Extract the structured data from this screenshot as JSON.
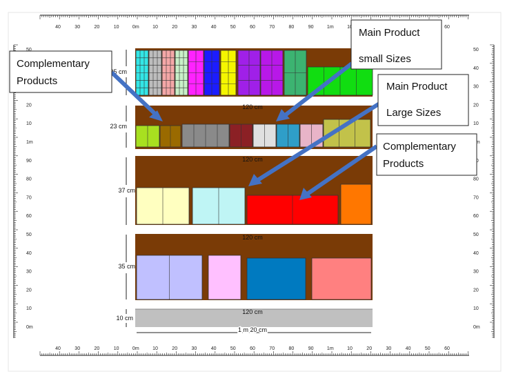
{
  "ruler": {
    "top_labels": [
      "40",
      "30",
      "20",
      "10",
      "0m",
      "10",
      "20",
      "30",
      "40",
      "50",
      "60",
      "70",
      "80",
      "90",
      "1m",
      "10",
      "20",
      "30",
      "40",
      "50",
      "60"
    ],
    "bottom_labels": [
      "40",
      "30",
      "20",
      "10",
      "0m",
      "10",
      "20",
      "30",
      "40",
      "50",
      "60",
      "70",
      "80",
      "90",
      "1m",
      "10",
      "20",
      "30",
      "40",
      "50",
      "60"
    ],
    "side_labels": [
      "50",
      "40",
      "30",
      "20",
      "10",
      "1m",
      "90",
      "80",
      "70",
      "60",
      "50",
      "40",
      "30",
      "20",
      "10",
      "0m"
    ]
  },
  "shelves": [
    {
      "height_label": "25 cm",
      "width_label": ""
    },
    {
      "height_label": "23 cm",
      "width_label": "120 cm"
    },
    {
      "height_label": "37 cm",
      "width_label": "120 cm"
    },
    {
      "height_label": "35 cm",
      "width_label": "120 cm"
    },
    {
      "height_label": "10 cm",
      "width_label": "120 cm"
    }
  ],
  "total_width_label": "1 m 20 cm",
  "colors": {
    "shelf_brown": "#7a3b06",
    "base_gray": "#c0c0c0",
    "arrow_blue": "#4472c4"
  },
  "callouts": [
    {
      "lines": [
        "Complementary",
        "Products"
      ]
    },
    {
      "lines": [
        "Main Product",
        "small Sizes"
      ]
    },
    {
      "lines": [
        "Main Product",
        "Large Sizes"
      ]
    },
    {
      "lines": [
        "Complementary",
        "Products"
      ]
    }
  ]
}
